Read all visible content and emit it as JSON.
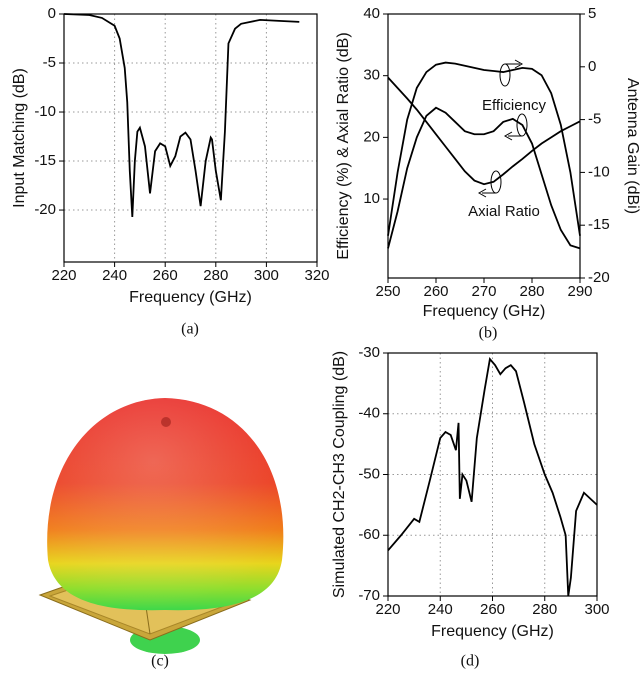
{
  "chart_data": [
    {
      "type": "line",
      "x_label": "Frequency (GHz)",
      "y_label": "Input Matching (dB)",
      "x": [
        220,
        230,
        235,
        240,
        242,
        244,
        245,
        246,
        247,
        248,
        249,
        250,
        252,
        254,
        256,
        258,
        260,
        262,
        264,
        266,
        268,
        270,
        272,
        274,
        276,
        278,
        278.5,
        280,
        282,
        283.6,
        285,
        287.6,
        290,
        297.5,
        305,
        313
      ],
      "values": [
        0,
        -0.1,
        -0.4,
        -1.2,
        -2.5,
        -5.5,
        -9,
        -16,
        -20.7,
        -15,
        -12,
        -11.6,
        -13.5,
        -18.3,
        -14,
        -13.2,
        -13.5,
        -15.5,
        -14.5,
        -12.5,
        -12.1,
        -12.8,
        -16,
        -19.6,
        -15,
        -12.6,
        -12.8,
        -16,
        -19,
        -12,
        -3,
        -1.5,
        -1,
        -0.6,
        -0.7,
        -0.8
      ],
      "color": "#000000",
      "xlim": [
        220,
        320
      ],
      "ylim": [
        -25.3,
        0
      ],
      "xticks": [
        220,
        240,
        260,
        280,
        300,
        320
      ],
      "yticks": [
        0,
        -5,
        -10,
        -15,
        -20
      ],
      "grid": true
    },
    {
      "type": "line",
      "x_label": "Frequency (GHz)",
      "y_label": "Efficiency (%) & Axial Ratio (dB)",
      "y2_label": "Antenna Gain (dBi)",
      "x": [
        250,
        252,
        254,
        256,
        258,
        260,
        262,
        264,
        266,
        268,
        270,
        272,
        274,
        276,
        278,
        280,
        282,
        284,
        286,
        288,
        290
      ],
      "series": [
        {
          "name": "Efficiency",
          "color": "#000000",
          "values": [
            2,
            8,
            15,
            20,
            23.5,
            24.8,
            24,
            22.5,
            21,
            20.5,
            20.5,
            21,
            22.5,
            23,
            22,
            19,
            14,
            9,
            5,
            2.5,
            2
          ]
        },
        {
          "color": "#000000",
          "axis": "y2",
          "values": [
            -16,
            -10,
            -5,
            -2,
            -0.5,
            0.2,
            0.4,
            0.3,
            0.1,
            -0.1,
            -0.3,
            -0.4,
            -0.5,
            -0.3,
            -0.1,
            -0.2,
            -0.8,
            -2.5,
            -5.5,
            -10,
            -16
          ]
        },
        {
          "name": "Axial Ratio",
          "color": "#000000",
          "values": [
            29.7,
            28,
            26.3,
            24.5,
            22.5,
            20.5,
            18.5,
            16.5,
            14.5,
            13,
            12.4,
            12.8,
            14,
            15.3,
            16.5,
            17.8,
            19,
            20,
            21,
            21.8,
            22.6
          ]
        }
      ],
      "xlim": [
        250,
        290
      ],
      "ylim": [
        -2.8,
        40
      ],
      "y2lim": [
        -20,
        5
      ],
      "xticks": [
        250,
        260,
        270,
        280,
        290
      ],
      "yticks": [
        10,
        20,
        30,
        40
      ],
      "y2ticks": [
        5,
        0,
        -5,
        -10,
        -15,
        -20
      ],
      "grid": false
    },
    {
      "type": "line",
      "x_label": "Frequency (GHz)",
      "y_label": "Simulated CH2-CH3 Coupling (dB)",
      "x": [
        220,
        225,
        230,
        232,
        236,
        240,
        242,
        244,
        246,
        247,
        247.5,
        248.5,
        250,
        252,
        254,
        257,
        259,
        261,
        263,
        265,
        267,
        269,
        272,
        276,
        280,
        283,
        286,
        288,
        289,
        290,
        292,
        295,
        300
      ],
      "values": [
        -62.5,
        -60,
        -57.3,
        -57.8,
        -51,
        -44,
        -43,
        -43.5,
        -46,
        -41.5,
        -54,
        -50,
        -51,
        -54.5,
        -44,
        -36,
        -31,
        -32,
        -33.5,
        -32.5,
        -32,
        -33,
        -38,
        -45,
        -50,
        -53,
        -57,
        -60,
        -70,
        -67,
        -56,
        -53,
        -55
      ],
      "color": "#000000",
      "xlim": [
        220,
        300
      ],
      "ylim": [
        -70,
        -30
      ],
      "xticks": [
        220,
        240,
        260,
        280,
        300
      ],
      "yticks": [
        -30,
        -40,
        -50,
        -60,
        -70
      ],
      "grid": true
    }
  ],
  "captions": [
    "(a)",
    "(b)",
    "(c)",
    "(d)"
  ]
}
